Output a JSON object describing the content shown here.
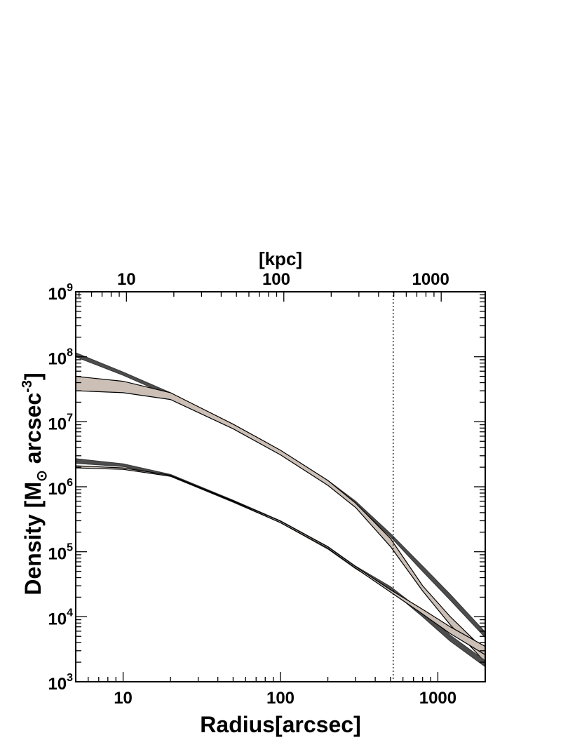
{
  "chart_data": {
    "type": "line",
    "xlabel": "Radius[arcsec]",
    "top_xlabel": "[kpc]",
    "ylabel_parts": {
      "pre": "Density [M",
      "sun": "⊙",
      "mid": " arcsec",
      "sup": "-3",
      "post": "]"
    },
    "x_scale": "log",
    "y_scale": "log",
    "xlim": [
      5,
      2000
    ],
    "ylim": [
      1000,
      1000000000
    ],
    "x_ticks": [
      {
        "value": 10,
        "label": "10"
      },
      {
        "value": 100,
        "label": "100"
      },
      {
        "value": 1000,
        "label": "1000"
      }
    ],
    "y_ticks": [
      {
        "value": 1000,
        "base": "10",
        "exp": "3"
      },
      {
        "value": 10000,
        "base": "10",
        "exp": "4"
      },
      {
        "value": 100000,
        "base": "10",
        "exp": "5"
      },
      {
        "value": 1000000,
        "base": "10",
        "exp": "6"
      },
      {
        "value": 10000000,
        "base": "10",
        "exp": "7"
      },
      {
        "value": 100000000,
        "base": "10",
        "exp": "8"
      },
      {
        "value": 1000000000,
        "base": "10",
        "exp": "9"
      }
    ],
    "top_ticks": [
      {
        "arcsec": 10.5,
        "label": "10"
      },
      {
        "arcsec": 94,
        "label": "100"
      },
      {
        "arcsec": 900,
        "label": "1000"
      }
    ],
    "vline_x": 520,
    "series": [
      {
        "style": "dark_band",
        "x": [
          5,
          10,
          20,
          50,
          100,
          200,
          300,
          500,
          800,
          1200,
          2000
        ],
        "lo": [
          100000000,
          52000000,
          25000000,
          8000000,
          3200000,
          1100000,
          550000,
          170000,
          50000,
          18000,
          4800
        ],
        "hi": [
          115000000,
          58000000,
          28000000,
          9000000,
          3600000,
          1250000,
          600000,
          190000,
          60000,
          22000,
          5800
        ]
      },
      {
        "style": "light_band",
        "x": [
          5,
          10,
          20,
          50,
          100,
          200,
          300,
          500,
          800,
          1200,
          2000
        ],
        "lo": [
          30000000,
          28000000,
          22000000,
          7800000,
          3100000,
          1050000,
          480000,
          120000,
          25000,
          7500,
          2000
        ],
        "hi": [
          50000000,
          42000000,
          28000000,
          9200000,
          3650000,
          1250000,
          560000,
          160000,
          30000,
          10000,
          3000
        ]
      },
      {
        "style": "dark_band",
        "x": [
          5,
          10,
          20,
          50,
          100,
          200,
          300,
          500,
          800,
          1200,
          2000
        ],
        "lo": [
          2300000,
          2050000,
          1450000,
          580000,
          280000,
          110000,
          55000,
          26000,
          10000,
          4200,
          1700
        ],
        "hi": [
          2700000,
          2250000,
          1550000,
          620000,
          300000,
          120000,
          60000,
          29000,
          12000,
          5200,
          2100
        ]
      },
      {
        "style": "light_band",
        "x": [
          5,
          10,
          20,
          50,
          100,
          200,
          300,
          500,
          800,
          1200,
          2000
        ],
        "lo": [
          1950000,
          1850000,
          1450000,
          590000,
          280000,
          113000,
          56000,
          24000,
          11000,
          5500,
          2600
        ],
        "hi": [
          2100000,
          1950000,
          1500000,
          610000,
          295000,
          119000,
          59000,
          26000,
          13000,
          7000,
          3500
        ]
      }
    ]
  }
}
